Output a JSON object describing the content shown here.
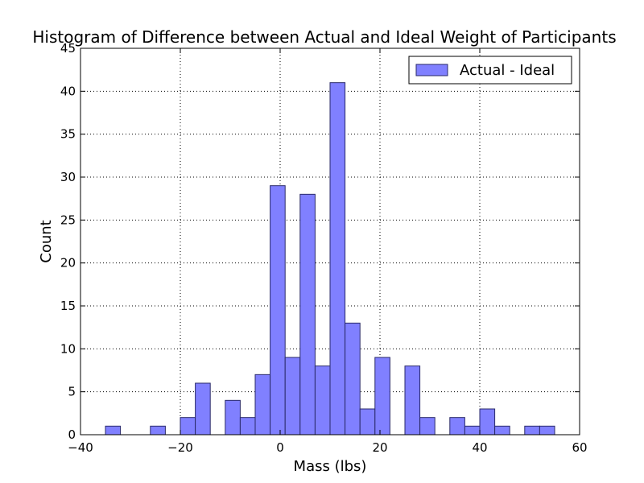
{
  "chart_data": {
    "type": "bar",
    "title": "Histogram of Difference between Actual and Ideal Weight of Participants",
    "xlabel": "Mass (lbs)",
    "ylabel": "Count",
    "xlim": [
      -40,
      60
    ],
    "ylim": [
      0,
      45
    ],
    "xticks": [
      -40,
      -20,
      0,
      20,
      40,
      60
    ],
    "xtick_labels": [
      "−40",
      "−20",
      "0",
      "20",
      "40",
      "60"
    ],
    "yticks": [
      0,
      5,
      10,
      15,
      20,
      25,
      30,
      35,
      40,
      45
    ],
    "ytick_labels": [
      "0",
      "5",
      "10",
      "15",
      "20",
      "25",
      "30",
      "35",
      "40",
      "45"
    ],
    "grid": true,
    "legend_position": "top-right",
    "bin_width": 3.0,
    "series": [
      {
        "name": "Actual - Ideal",
        "color": "#8080ff",
        "edge_color": "#2a2a6a",
        "bins": [
          {
            "x": -35,
            "value": 1
          },
          {
            "x": -26,
            "value": 1
          },
          {
            "x": -20,
            "value": 2
          },
          {
            "x": -17,
            "value": 6
          },
          {
            "x": -11,
            "value": 4
          },
          {
            "x": -8,
            "value": 2
          },
          {
            "x": -5,
            "value": 7
          },
          {
            "x": -2,
            "value": 29
          },
          {
            "x": 1,
            "value": 9
          },
          {
            "x": 4,
            "value": 28
          },
          {
            "x": 7,
            "value": 8
          },
          {
            "x": 10,
            "value": 41
          },
          {
            "x": 13,
            "value": 13
          },
          {
            "x": 16,
            "value": 3
          },
          {
            "x": 19,
            "value": 9
          },
          {
            "x": 25,
            "value": 8
          },
          {
            "x": 28,
            "value": 2
          },
          {
            "x": 34,
            "value": 2
          },
          {
            "x": 37,
            "value": 1
          },
          {
            "x": 40,
            "value": 3
          },
          {
            "x": 43,
            "value": 1
          },
          {
            "x": 49,
            "value": 1
          },
          {
            "x": 52,
            "value": 1
          }
        ]
      }
    ]
  }
}
